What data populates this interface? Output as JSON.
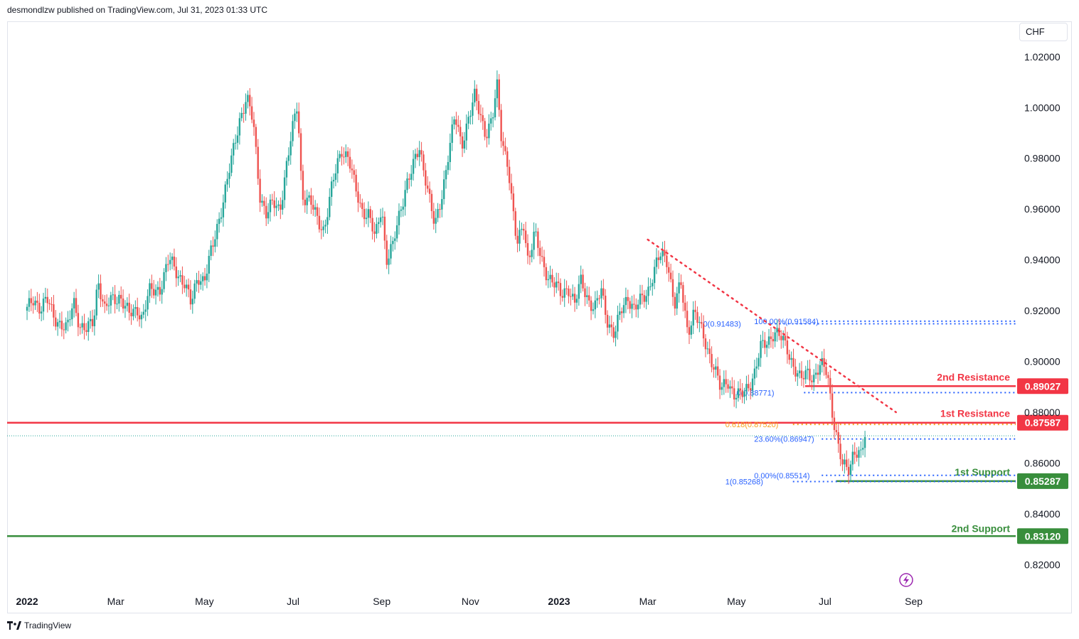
{
  "header": {
    "published": "desmondlzw published on TradingView.com, Jul 31, 2023 01:33 UTC"
  },
  "currency": "CHF",
  "footer": {
    "brand": "TradingView"
  },
  "icons": {
    "logo": "tradingview-logo-icon",
    "replay": "lightning-icon"
  },
  "colors": {
    "up": "#26a69a",
    "down": "#ef5350",
    "resistance": "#f23645",
    "support": "#388e3c",
    "fib": "#2962ff",
    "fib_golden": "#f7a21b"
  },
  "chart_data": {
    "type": "candlestick",
    "title": "",
    "ylim": [
      0.81,
      1.025
    ],
    "y_ticks": [
      "1.02000",
      "1.00000",
      "0.98000",
      "0.96000",
      "0.94000",
      "0.92000",
      "0.90000",
      "0.88000",
      "0.86000",
      "0.84000",
      "0.82000"
    ],
    "x_ticks": [
      "2022",
      "Mar",
      "May",
      "Jul",
      "Sep",
      "Nov",
      "2023",
      "Mar",
      "May",
      "Jul",
      "Sep"
    ],
    "x_tick_months": [
      0,
      2,
      4,
      6,
      8,
      10,
      12,
      14,
      16,
      18,
      20
    ],
    "x_range_months": [
      -0.45,
      22.3
    ],
    "price_path": [
      [
        0.0,
        0.92
      ],
      [
        0.15,
        0.925
      ],
      [
        0.3,
        0.921
      ],
      [
        0.45,
        0.924
      ],
      [
        0.6,
        0.918
      ],
      [
        0.75,
        0.915
      ],
      [
        0.9,
        0.912
      ],
      [
        1.05,
        0.924
      ],
      [
        1.2,
        0.914
      ],
      [
        1.35,
        0.912
      ],
      [
        1.5,
        0.916
      ],
      [
        1.6,
        0.933
      ],
      [
        1.75,
        0.92
      ],
      [
        1.9,
        0.924
      ],
      [
        2.1,
        0.926
      ],
      [
        2.3,
        0.918
      ],
      [
        2.5,
        0.921
      ],
      [
        2.6,
        0.917
      ],
      [
        2.75,
        0.927
      ],
      [
        3.0,
        0.929
      ],
      [
        3.2,
        0.94
      ],
      [
        3.35,
        0.936
      ],
      [
        3.55,
        0.931
      ],
      [
        3.7,
        0.922
      ],
      [
        3.85,
        0.934
      ],
      [
        4.0,
        0.932
      ],
      [
        4.2,
        0.946
      ],
      [
        4.4,
        0.962
      ],
      [
        4.6,
        0.978
      ],
      [
        4.8,
        0.996
      ],
      [
        4.95,
        1.004
      ],
      [
        5.1,
        0.994
      ],
      [
        5.25,
        0.966
      ],
      [
        5.4,
        0.958
      ],
      [
        5.55,
        0.962
      ],
      [
        5.7,
        0.96
      ],
      [
        5.85,
        0.977
      ],
      [
        6.0,
        0.992
      ],
      [
        6.1,
        1.002
      ],
      [
        6.2,
        0.966
      ],
      [
        6.4,
        0.962
      ],
      [
        6.55,
        0.956
      ],
      [
        6.7,
        0.952
      ],
      [
        6.85,
        0.966
      ],
      [
        7.0,
        0.978
      ],
      [
        7.1,
        0.984
      ],
      [
        7.25,
        0.98
      ],
      [
        7.4,
        0.968
      ],
      [
        7.55,
        0.96
      ],
      [
        7.7,
        0.958
      ],
      [
        7.85,
        0.948
      ],
      [
        8.0,
        0.962
      ],
      [
        8.1,
        0.94
      ],
      [
        8.25,
        0.945
      ],
      [
        8.4,
        0.958
      ],
      [
        8.55,
        0.97
      ],
      [
        8.7,
        0.976
      ],
      [
        8.85,
        0.984
      ],
      [
        9.0,
        0.972
      ],
      [
        9.1,
        0.962
      ],
      [
        9.2,
        0.952
      ],
      [
        9.35,
        0.965
      ],
      [
        9.5,
        0.982
      ],
      [
        9.65,
        0.996
      ],
      [
        9.8,
        0.985
      ],
      [
        9.95,
        0.996
      ],
      [
        10.1,
        1.004
      ],
      [
        10.2,
        0.998
      ],
      [
        10.35,
        0.99
      ],
      [
        10.5,
        0.996
      ],
      [
        10.6,
        1.008
      ],
      [
        10.7,
        0.988
      ],
      [
        10.85,
        0.978
      ],
      [
        10.95,
        0.96
      ],
      [
        11.05,
        0.945
      ],
      [
        11.2,
        0.955
      ],
      [
        11.3,
        0.94
      ],
      [
        11.45,
        0.95
      ],
      [
        11.6,
        0.94
      ],
      [
        11.75,
        0.934
      ],
      [
        11.9,
        0.93
      ],
      [
        12.05,
        0.926
      ],
      [
        12.2,
        0.93
      ],
      [
        12.35,
        0.922
      ],
      [
        12.5,
        0.932
      ],
      [
        12.65,
        0.925
      ],
      [
        12.8,
        0.92
      ],
      [
        12.95,
        0.928
      ],
      [
        13.1,
        0.916
      ],
      [
        13.25,
        0.91
      ],
      [
        13.4,
        0.92
      ],
      [
        13.55,
        0.926
      ],
      [
        13.7,
        0.92
      ],
      [
        13.85,
        0.924
      ],
      [
        14.0,
        0.928
      ],
      [
        14.15,
        0.936
      ],
      [
        14.3,
        0.942
      ],
      [
        14.45,
        0.94
      ],
      [
        14.6,
        0.922
      ],
      [
        14.75,
        0.93
      ],
      [
        14.9,
        0.912
      ],
      [
        15.05,
        0.92
      ],
      [
        15.2,
        0.912
      ],
      [
        15.35,
        0.905
      ],
      [
        15.5,
        0.898
      ],
      [
        15.65,
        0.888
      ],
      [
        15.8,
        0.893
      ],
      [
        15.95,
        0.887
      ],
      [
        16.1,
        0.886
      ],
      [
        16.25,
        0.89
      ],
      [
        16.4,
        0.895
      ],
      [
        16.55,
        0.905
      ],
      [
        16.7,
        0.908
      ],
      [
        16.85,
        0.912
      ],
      [
        17.0,
        0.909
      ],
      [
        17.15,
        0.905
      ],
      [
        17.3,
        0.898
      ],
      [
        17.45,
        0.892
      ],
      [
        17.6,
        0.896
      ],
      [
        17.75,
        0.894
      ],
      [
        17.9,
        0.898
      ],
      [
        18.05,
        0.896
      ],
      [
        18.15,
        0.882
      ],
      [
        18.3,
        0.866
      ],
      [
        18.4,
        0.858
      ],
      [
        18.55,
        0.858
      ],
      [
        18.65,
        0.866
      ],
      [
        18.8,
        0.862
      ],
      [
        18.9,
        0.87
      ]
    ],
    "levels": [
      {
        "name": "2nd Resistance",
        "value": 0.89027,
        "label": "0.89027",
        "type": "resistance",
        "start_month": 17.55
      },
      {
        "name": "1st Resistance",
        "value": 0.87587,
        "label": "0.87587",
        "type": "resistance",
        "start_month": -0.45
      },
      {
        "name": "1st Support",
        "value": 0.85287,
        "label": "0.85287",
        "type": "support",
        "start_month": 18.25
      },
      {
        "name": "2nd Support",
        "value": 0.8312,
        "label": "0.83120",
        "type": "support",
        "start_month": -0.45
      }
    ],
    "fib_labels": [
      {
        "text": "100.00%(0.91584)",
        "value": 0.91584,
        "month": 16.4
      },
      {
        "text": "0(0.91483)",
        "value": 0.91483,
        "month": 15.25
      },
      {
        "text": "0(0.88771)",
        "value": 0.88771,
        "month": 16.0
      },
      {
        "text": "0.618(0.87520)",
        "value": 0.8752,
        "month": 15.75,
        "golden": true
      },
      {
        "text": "23.60%(0.86947)",
        "value": 0.86947,
        "month": 16.4
      },
      {
        "text": "0.00%(0.85514)",
        "value": 0.85514,
        "month": 16.4
      },
      {
        "text": "1(0.85268)",
        "value": 0.85268,
        "month": 15.75
      }
    ],
    "current_price": 0.8707,
    "trendline": {
      "start": [
        14.0,
        0.948
      ],
      "end": [
        19.6,
        0.88
      ]
    }
  }
}
